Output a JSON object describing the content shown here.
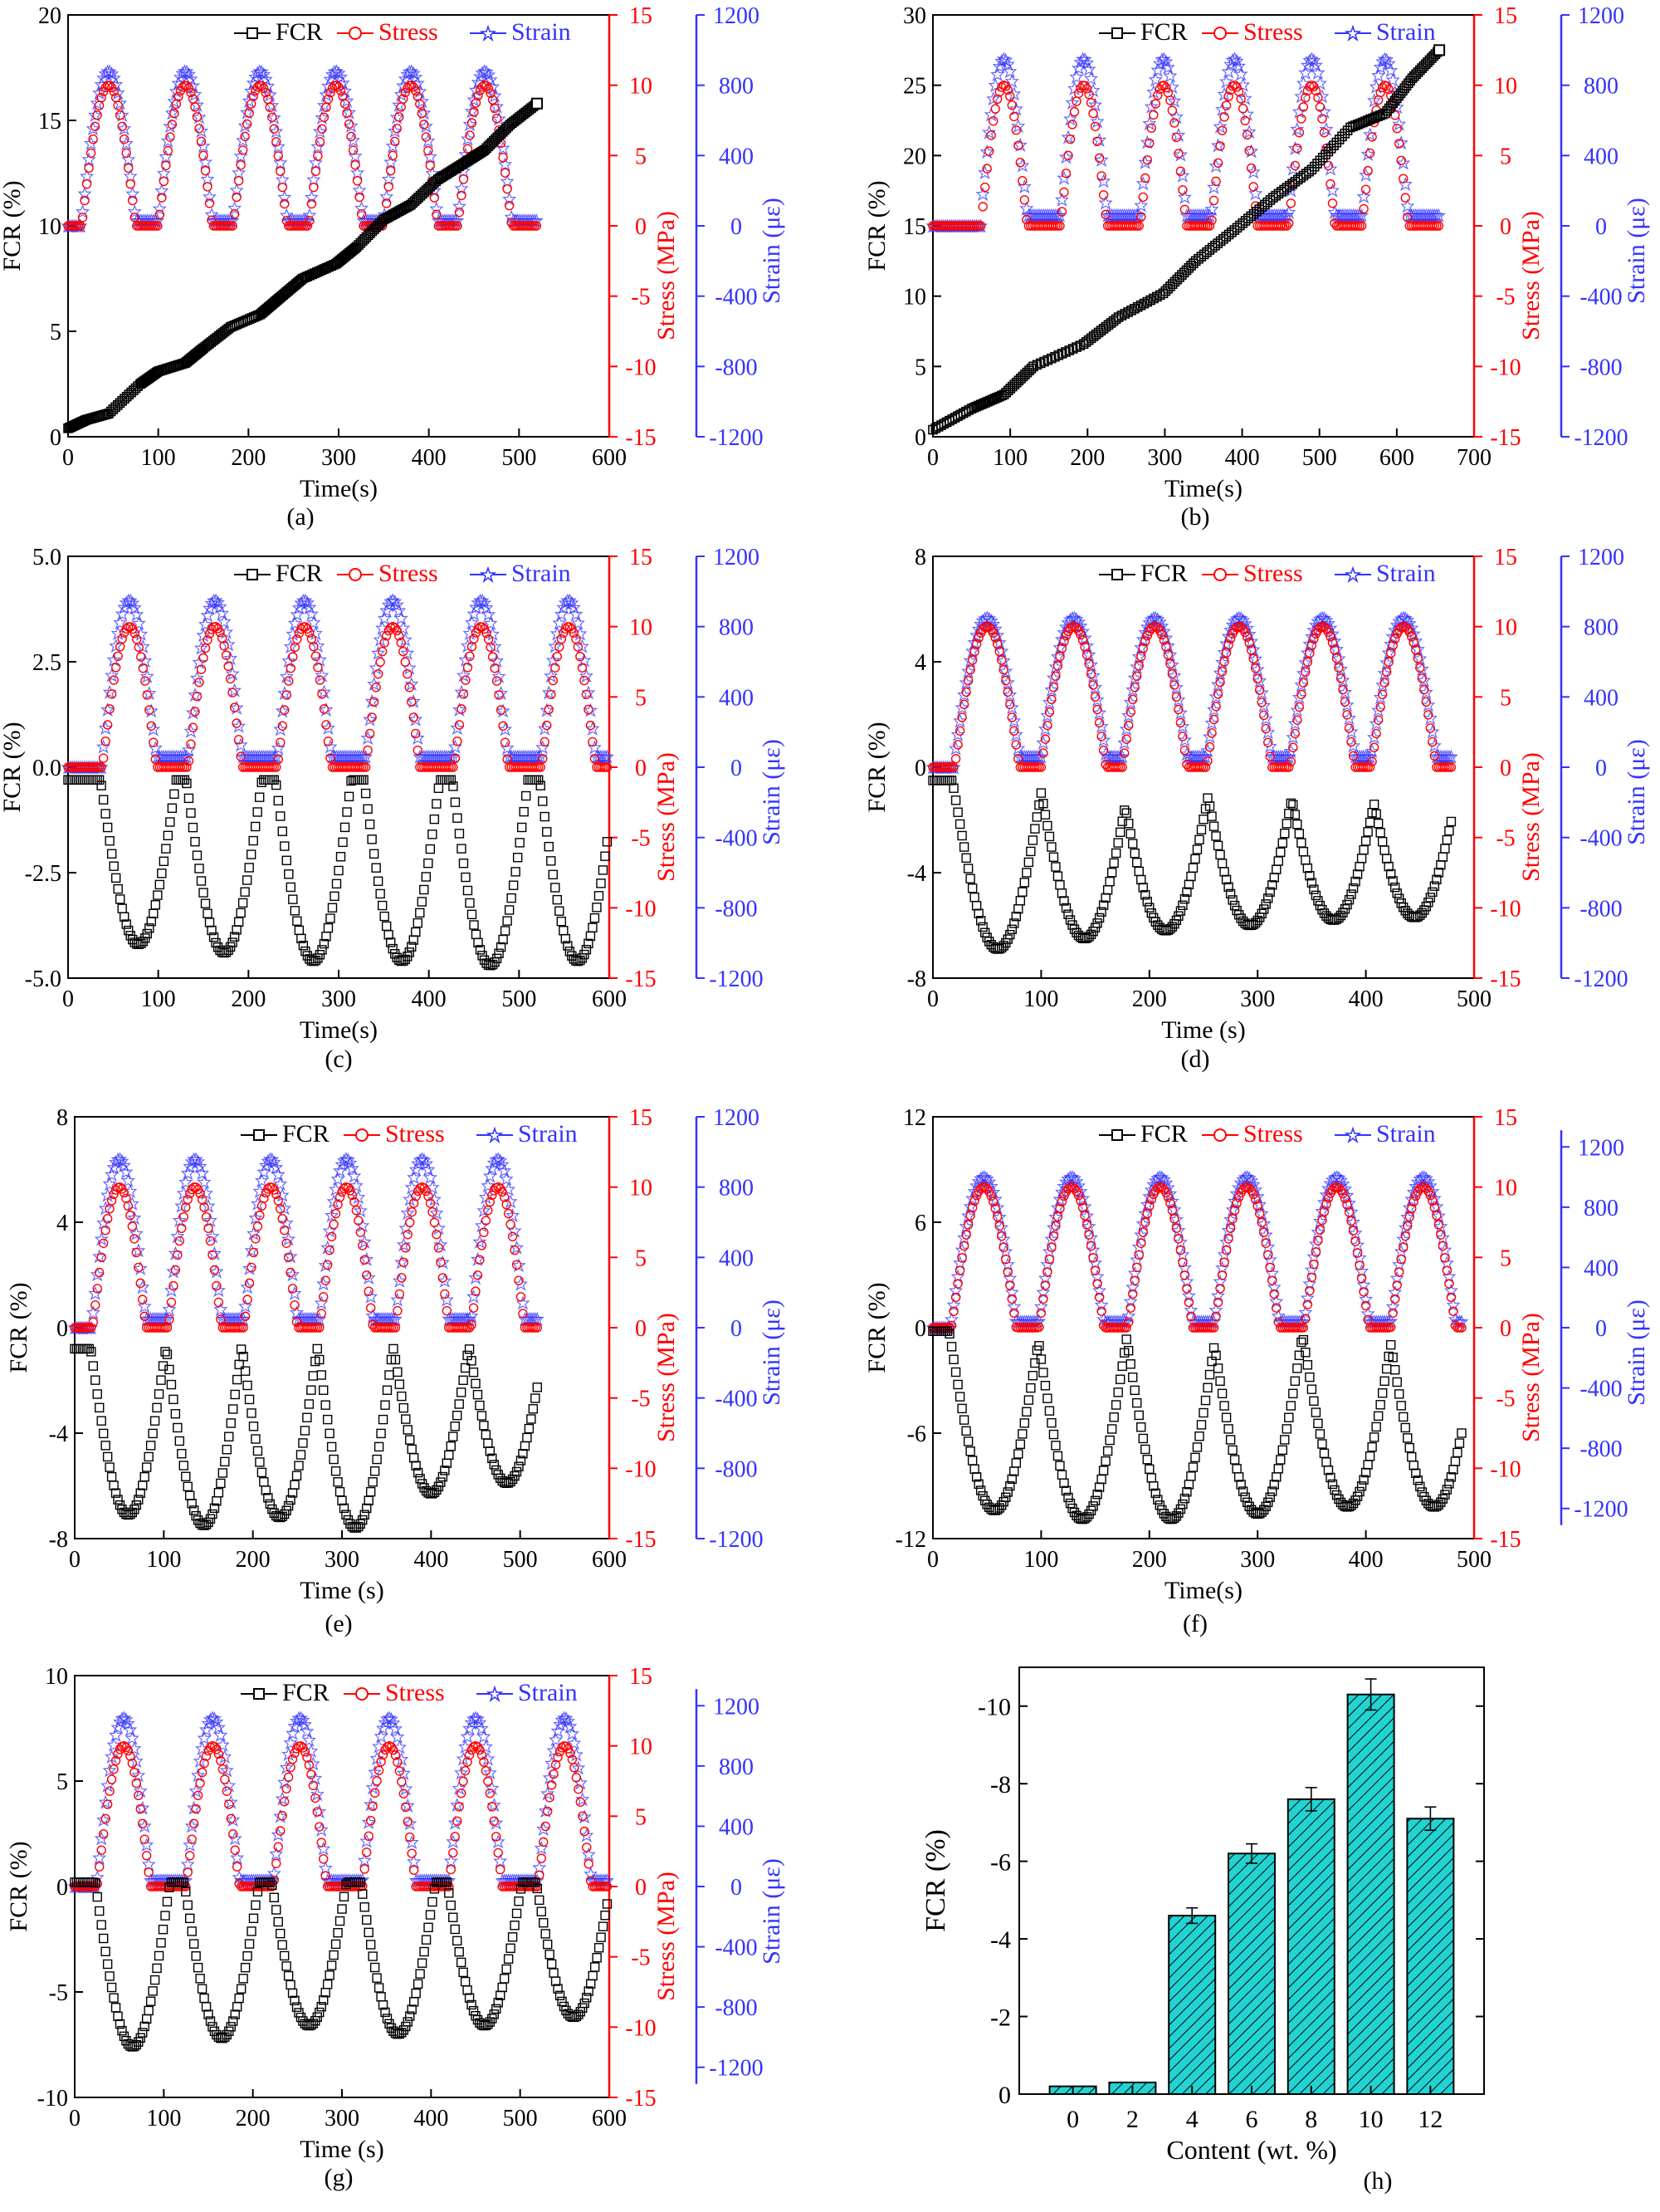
{
  "figure": {
    "colors": {
      "fcr": "#000000",
      "stress": "#ff0000",
      "strain": "#3333ff",
      "bar": "#22d3d3"
    }
  },
  "chart_data": [
    {
      "id": "a",
      "type": "line",
      "caption": "(a)",
      "xlabel": "Time(s)",
      "ylabel": "FCR (%)",
      "y2label": "Stress (MPa)",
      "y3label": "Strain (με)",
      "xlim": [
        0,
        600
      ],
      "xticks": [
        0,
        100,
        200,
        300,
        400,
        500,
        600
      ],
      "ylim": [
        0,
        20
      ],
      "yticks": [
        0,
        5,
        10,
        15,
        20
      ],
      "y2lim": [
        -15,
        15
      ],
      "y2ticks": [
        -15,
        -10,
        -5,
        0,
        5,
        10,
        15
      ],
      "y3lim": [
        -1200,
        1200
      ],
      "y3ticks": [
        -1200,
        -800,
        -400,
        0,
        400,
        800,
        1200
      ],
      "legend": [
        "FCR",
        "Stress",
        "Strain"
      ],
      "cycles": {
        "start": 0,
        "end": 520,
        "peaks": [
          45,
          130,
          213,
          297,
          380,
          462
        ]
      },
      "stress_peak": 10,
      "strain_peak": 880,
      "strain_base": 30,
      "series": [
        {
          "name": "FCR",
          "axis": "y",
          "kind": "points",
          "x": [
            0,
            20,
            45,
            80,
            100,
            130,
            150,
            180,
            213,
            235,
            260,
            297,
            320,
            350,
            380,
            410,
            440,
            462,
            490,
            520
          ],
          "y": [
            0.4,
            0.8,
            1.1,
            2.5,
            3.1,
            3.5,
            4.2,
            5.2,
            5.8,
            6.6,
            7.5,
            8.2,
            9.0,
            10.3,
            11.0,
            12.2,
            13.0,
            13.6,
            14.8,
            15.8
          ]
        }
      ]
    },
    {
      "id": "b",
      "type": "line",
      "caption": "(b)",
      "xlabel": "Time(s)",
      "ylabel": "FCR (%)",
      "y2label": "Stress (MPa)",
      "y3label": "Strain (με)",
      "xlim": [
        0,
        700
      ],
      "xticks": [
        0,
        100,
        200,
        300,
        400,
        500,
        600,
        700
      ],
      "ylim": [
        0,
        30
      ],
      "yticks": [
        0,
        5,
        10,
        15,
        20,
        25,
        30
      ],
      "y2lim": [
        -15,
        15
      ],
      "y2ticks": [
        -15,
        -10,
        -5,
        0,
        5,
        10,
        15
      ],
      "y3lim": [
        -1200,
        1200
      ],
      "y3ticks": [
        -1200,
        -800,
        -400,
        0,
        400,
        800,
        1200
      ],
      "legend": [
        "FCR",
        "Stress",
        "Strain"
      ],
      "cycles": {
        "start": 0,
        "end": 655,
        "peaks": [
          92,
          195,
          298,
          390,
          490,
          585
        ]
      },
      "stress_peak": 10,
      "strain_peak": 950,
      "strain_base": 60,
      "series": [
        {
          "name": "FCR",
          "axis": "y",
          "kind": "points",
          "x": [
            0,
            50,
            92,
            130,
            195,
            240,
            298,
            340,
            390,
            440,
            490,
            540,
            585,
            620,
            655
          ],
          "y": [
            0.5,
            2.0,
            3.0,
            5.0,
            6.6,
            8.5,
            10.2,
            12.5,
            14.7,
            17.0,
            19.0,
            22.0,
            23.0,
            25.5,
            27.5
          ]
        }
      ]
    },
    {
      "id": "c",
      "type": "line",
      "caption": "(c)",
      "xlabel": "Time(s)",
      "ylabel": "FCR (%)",
      "y2label": "Stress (MPa)",
      "y3label": "Strain (με)",
      "xlim": [
        0,
        600
      ],
      "xticks": [
        0,
        100,
        200,
        300,
        400,
        500,
        600
      ],
      "ylim": [
        -5,
        5
      ],
      "yticks": [
        -5.0,
        -2.5,
        0.0,
        2.5,
        5.0
      ],
      "y2lim": [
        -15,
        15
      ],
      "y2ticks": [
        -15,
        -10,
        -5,
        0,
        5,
        10,
        15
      ],
      "y3lim": [
        -1200,
        1200
      ],
      "y3ticks": [
        -1200,
        -800,
        -400,
        0,
        400,
        800,
        1200
      ],
      "legend": [
        "FCR",
        "Stress",
        "Strain"
      ],
      "cycles": {
        "start": 0,
        "end": 600,
        "peaks": [
          68,
          163,
          262,
          360,
          458,
          555
        ]
      },
      "stress_peak": 10,
      "strain_peak": 950,
      "strain_base": 60,
      "series": [
        {
          "name": "FCR",
          "axis": "y",
          "kind": "cyclic",
          "baseline": -0.3,
          "minima": [
            -4.2,
            -4.4,
            -4.6,
            -4.6,
            -4.7,
            -4.6
          ]
        }
      ]
    },
    {
      "id": "d",
      "type": "line",
      "caption": "(d)",
      "xlabel": "Time (s)",
      "ylabel": "FCR (%)",
      "y2label": "Stress (MPa)",
      "y3label": "Strain (με)",
      "xlim": [
        0,
        500
      ],
      "xticks": [
        0,
        100,
        200,
        300,
        400,
        500
      ],
      "ylim": [
        -8,
        8
      ],
      "yticks": [
        -8,
        -4,
        0,
        4,
        8
      ],
      "y2lim": [
        -15,
        15
      ],
      "y2ticks": [
        -15,
        -10,
        -5,
        0,
        5,
        10,
        15
      ],
      "y3lim": [
        -1200,
        1200
      ],
      "y3ticks": [
        -1200,
        -800,
        -400,
        0,
        400,
        800,
        1200
      ],
      "legend": [
        "FCR",
        "Stress",
        "Strain"
      ],
      "cycles": {
        "start": 0,
        "end": 480,
        "peaks": [
          50,
          130,
          205,
          283,
          360,
          435
        ]
      },
      "stress_peak": 10,
      "strain_peak": 850,
      "strain_base": 60,
      "series": [
        {
          "name": "FCR",
          "axis": "y",
          "kind": "cyclic",
          "baseline": -0.5,
          "minima": [
            -6.9,
            -6.5,
            -6.2,
            -6.0,
            -5.8,
            -5.7
          ]
        }
      ]
    },
    {
      "id": "e",
      "type": "line",
      "caption": "(e)",
      "xlabel": "Time (s)",
      "ylabel": "FCR (%)",
      "y2label": "Stress (MPa)",
      "y3label": "Strain (με)",
      "xlim": [
        0,
        600
      ],
      "xticks": [
        0,
        100,
        200,
        300,
        400,
        500,
        600
      ],
      "ylim": [
        -8,
        8
      ],
      "yticks": [
        -8,
        -4,
        0,
        4,
        8
      ],
      "y2lim": [
        -15,
        15
      ],
      "y2ticks": [
        -15,
        -10,
        -5,
        0,
        5,
        10,
        15
      ],
      "y3lim": [
        -1200,
        1200
      ],
      "y3ticks": [
        -1200,
        -800,
        -400,
        0,
        400,
        800,
        1200
      ],
      "legend": [
        "FCR",
        "Stress",
        "Strain"
      ],
      "cycles": {
        "start": 0,
        "end": 520,
        "peaks": [
          50,
          135,
          220,
          305,
          390,
          475
        ]
      },
      "stress_peak": 10,
      "strain_peak": 960,
      "strain_base": 50,
      "series": [
        {
          "name": "FCR",
          "axis": "y",
          "kind": "cyclic",
          "baseline": -0.8,
          "minima": [
            -7.1,
            -7.5,
            -7.2,
            -7.6,
            -6.3,
            -5.9
          ]
        }
      ]
    },
    {
      "id": "f",
      "type": "line",
      "caption": "(f)",
      "xlabel": "Time(s)",
      "ylabel": "FCR (%)",
      "y2label": "Stress (MPa)",
      "y3label": "Strain (με)",
      "xlim": [
        0,
        500
      ],
      "xticks": [
        0,
        100,
        200,
        300,
        400,
        500
      ],
      "ylim": [
        -12,
        12
      ],
      "yticks": [
        -12,
        -6,
        0,
        6,
        12
      ],
      "y2lim": [
        -15,
        15
      ],
      "y2ticks": [
        -15,
        -10,
        -5,
        0,
        5,
        10,
        15
      ],
      "y3lim": [
        -1400,
        1400
      ],
      "y3ticks": [
        -1200,
        -800,
        -400,
        0,
        400,
        800,
        1200
      ],
      "legend": [
        "FCR",
        "Stress",
        "Strain"
      ],
      "cycles": {
        "start": 0,
        "end": 490,
        "peaks": [
          47,
          128,
          210,
          290,
          373,
          453
        ]
      },
      "stress_peak": 10,
      "strain_peak": 1000,
      "strain_base": 40,
      "series": [
        {
          "name": "FCR",
          "axis": "y",
          "kind": "cyclic",
          "baseline": -0.2,
          "minima": [
            -10.4,
            -10.9,
            -10.9,
            -10.6,
            -10.2,
            -10.2
          ]
        }
      ]
    },
    {
      "id": "g",
      "type": "line",
      "caption": "(g)",
      "xlabel": "Time (s)",
      "ylabel": "FCR (%)",
      "y2label": "Stress (MPa)",
      "y3label": "Strain (με)",
      "xlim": [
        0,
        600
      ],
      "xticks": [
        0,
        100,
        200,
        300,
        400,
        500,
        600
      ],
      "ylim": [
        -10,
        10
      ],
      "yticks": [
        -10,
        -5,
        0,
        5,
        10
      ],
      "y2lim": [
        -15,
        15
      ],
      "y2ticks": [
        -15,
        -10,
        -5,
        0,
        5,
        10,
        15
      ],
      "y3lim": [
        -1400,
        1400
      ],
      "y3ticks": [
        -1200,
        -800,
        -400,
        0,
        400,
        800,
        1200
      ],
      "legend": [
        "FCR",
        "Stress",
        "Strain"
      ],
      "cycles": {
        "start": 0,
        "end": 600,
        "peaks": [
          55,
          155,
          253,
          353,
          450,
          550
        ]
      },
      "stress_peak": 10,
      "strain_peak": 1120,
      "strain_base": 40,
      "series": [
        {
          "name": "FCR",
          "axis": "y",
          "kind": "cyclic",
          "baseline": 0.2,
          "minima": [
            -7.6,
            -7.2,
            -6.6,
            -7.0,
            -6.6,
            -6.2
          ]
        }
      ]
    },
    {
      "id": "h",
      "type": "bar",
      "caption": "(h)",
      "xlabel": "Content (wt. %)",
      "ylabel": "FCR (%)",
      "categories": [
        "0",
        "2",
        "4",
        "6",
        "8",
        "10",
        "12"
      ],
      "values": [
        -0.2,
        -0.3,
        -4.6,
        -6.2,
        -7.6,
        -10.3,
        -7.1
      ],
      "errors": [
        0,
        0,
        0.2,
        0.25,
        0.3,
        0.4,
        0.3
      ],
      "ylim": [
        0,
        -11
      ],
      "yticks": [
        0,
        -2,
        -4,
        -6,
        -8,
        -10
      ],
      "inverted": true
    }
  ]
}
